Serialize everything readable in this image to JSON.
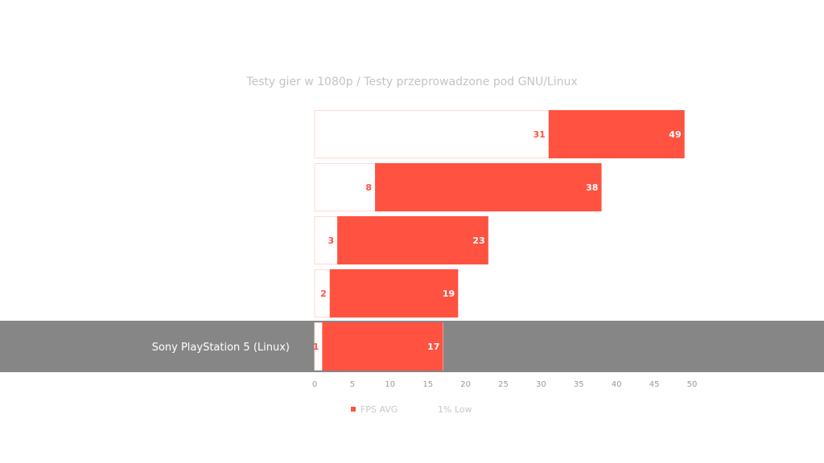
{
  "chart_data": {
    "type": "bar",
    "orientation": "horizontal",
    "title": "Testy gier w 1080p / Testy przeprowadzone pod GNU/Linux",
    "categories": [
      "",
      "",
      "",
      "",
      "Sony PlayStation 5 (Linux)"
    ],
    "highlighted_category_index": 4,
    "series": [
      {
        "name": "FPS AVG",
        "values": [
          49,
          38,
          23,
          19,
          17
        ]
      },
      {
        "name": "1% Low",
        "values": [
          31,
          8,
          3,
          2,
          1
        ]
      }
    ],
    "xlim": [
      0,
      50
    ],
    "xticks": [
      0,
      5,
      10,
      15,
      20,
      25,
      30,
      35,
      40,
      45,
      50
    ],
    "legend_position": "bottom",
    "grid": false
  },
  "colors": {
    "avg": "#ff5240",
    "low_fill": "#ffffff",
    "low_border": "#ffd9d4",
    "highlight_band": "#868686",
    "legend_inactive": "#c8c8c8"
  }
}
